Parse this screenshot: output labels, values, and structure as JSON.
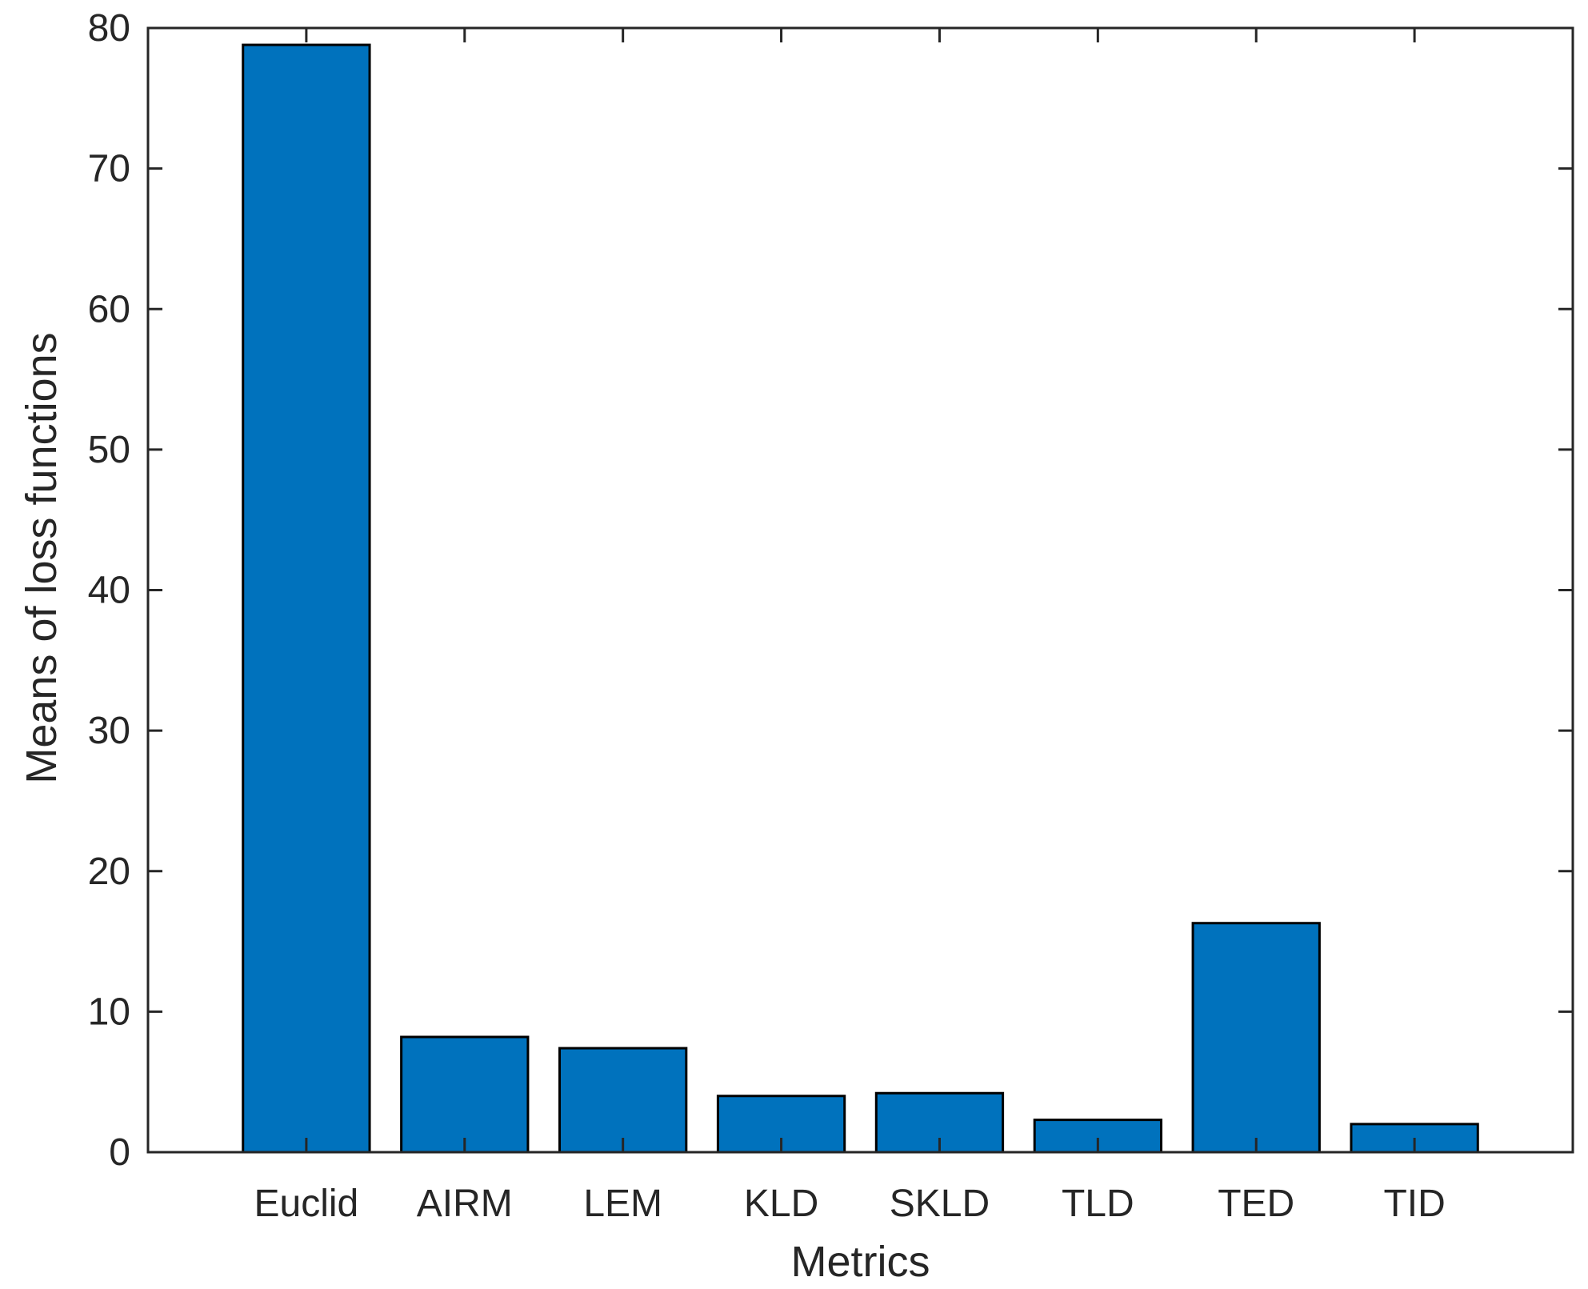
{
  "chart_data": {
    "type": "bar",
    "title": "",
    "xlabel": "Metrics",
    "ylabel": "Means of loss functions",
    "categories": [
      "Euclid",
      "AIRM",
      "LEM",
      "KLD",
      "SKLD",
      "TLD",
      "TED",
      "TID"
    ],
    "values": [
      78.8,
      8.2,
      7.4,
      4.0,
      4.2,
      2.3,
      16.3,
      2.0
    ],
    "ylim": [
      0,
      80
    ],
    "yticks": [
      0,
      10,
      20,
      30,
      40,
      50,
      60,
      70,
      80
    ],
    "xlim": [
      0,
      9
    ],
    "grid": false,
    "legend": "none",
    "colors": {
      "bar_fill": "#0072BD",
      "bar_edge": "#000000",
      "axis": "#262626"
    }
  }
}
